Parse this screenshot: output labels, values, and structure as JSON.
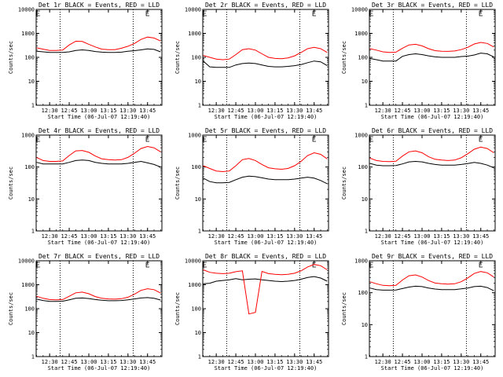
{
  "figure": {
    "time_unit_label": "Start Time (06-Jul-07 12:19:40)",
    "ylabel": "Counts/sec",
    "x_tick_labels": [
      "12:30",
      "12:45",
      "13:00",
      "13:15",
      "13:30",
      "13:45"
    ],
    "y_tick_labels": [
      "1",
      "10",
      "100",
      "1000",
      "10000"
    ]
  },
  "chart_data": [
    {
      "type": "line",
      "title": "Det 1r BLACK = Events, RED = LLD",
      "xlabel": "Start Time (06-Jul-07 12:19:40)",
      "ylabel": "Counts/sec",
      "yscale": "log",
      "ylim": [
        1,
        10000
      ],
      "xlim": [
        "12:19:40",
        "13:56:00"
      ],
      "x": [
        "12:20",
        "12:25",
        "12:30",
        "12:35",
        "12:40",
        "12:45",
        "12:50",
        "12:55",
        "13:00",
        "13:05",
        "13:10",
        "13:15",
        "13:20",
        "13:25",
        "13:30",
        "13:35",
        "13:40",
        "13:45",
        "13:50",
        "13:55"
      ],
      "vlines": [
        "12:38",
        "13:34"
      ],
      "series": [
        {
          "name": "BLACK = Events",
          "color": "#000000",
          "values": [
            180,
            170,
            160,
            160,
            160,
            170,
            195,
            205,
            195,
            175,
            165,
            160,
            160,
            165,
            180,
            190,
            205,
            225,
            215,
            170
          ]
        },
        {
          "name": "RED = LLD",
          "color": "#ff0000",
          "values": [
            250,
            220,
            195,
            195,
            200,
            330,
            470,
            460,
            350,
            270,
            220,
            210,
            210,
            240,
            290,
            380,
            560,
            700,
            640,
            480
          ]
        }
      ]
    },
    {
      "type": "line",
      "title": "Det 2r BLACK = Events, RED = LLD",
      "xlabel": "Start Time (06-Jul-07 12:19:40)",
      "ylabel": "Counts/sec",
      "yscale": "log",
      "ylim": [
        1,
        10000
      ],
      "xlim": [
        "12:19:40",
        "13:56:00"
      ],
      "x": [
        "12:20",
        "12:25",
        "12:30",
        "12:35",
        "12:40",
        "12:45",
        "12:50",
        "12:55",
        "13:00",
        "13:05",
        "13:10",
        "13:15",
        "13:20",
        "13:25",
        "13:30",
        "13:35",
        "13:40",
        "13:45",
        "13:50",
        "13:55"
      ],
      "vlines": [
        "12:38",
        "13:34"
      ],
      "series": [
        {
          "name": "BLACK = Events",
          "color": "#000000",
          "values": [
            70,
            40,
            38,
            38,
            38,
            48,
            55,
            58,
            55,
            48,
            42,
            40,
            40,
            42,
            45,
            50,
            60,
            70,
            65,
            45
          ]
        },
        {
          "name": "RED = LLD",
          "color": "#ff0000",
          "values": [
            120,
            100,
            85,
            80,
            85,
            130,
            210,
            230,
            200,
            140,
            100,
            90,
            88,
            95,
            115,
            160,
            230,
            260,
            230,
            160
          ]
        }
      ]
    },
    {
      "type": "line",
      "title": "Det 3r BLACK = Events, RED = LLD",
      "xlabel": "Start Time (06-Jul-07 12:19:40)",
      "ylabel": "Counts/sec",
      "yscale": "log",
      "ylim": [
        1,
        10000
      ],
      "xlim": [
        "12:19:40",
        "13:56:00"
      ],
      "x": [
        "12:20",
        "12:25",
        "12:30",
        "12:35",
        "12:40",
        "12:45",
        "12:50",
        "12:55",
        "13:00",
        "13:05",
        "13:10",
        "13:15",
        "13:20",
        "13:25",
        "13:30",
        "13:35",
        "13:40",
        "13:45",
        "13:50",
        "13:55"
      ],
      "vlines": [
        "12:38",
        "13:34"
      ],
      "series": [
        {
          "name": "BLACK = Events",
          "color": "#000000",
          "values": [
            90,
            80,
            70,
            70,
            70,
            110,
            130,
            140,
            130,
            115,
            105,
            100,
            100,
            100,
            108,
            112,
            125,
            150,
            140,
            105
          ]
        },
        {
          "name": "RED = LLD",
          "color": "#ff0000",
          "values": [
            230,
            200,
            170,
            160,
            165,
            240,
            330,
            350,
            300,
            230,
            190,
            180,
            178,
            185,
            210,
            260,
            360,
            420,
            380,
            270
          ]
        }
      ]
    },
    {
      "type": "line",
      "title": "Det 4r BLACK = Events, RED = LLD",
      "xlabel": "Start Time (06-Jul-07 12:19:40)",
      "ylabel": "Counts/sec",
      "yscale": "log",
      "ylim": [
        1,
        1000
      ],
      "xlim": [
        "12:19:40",
        "13:56:00"
      ],
      "x": [
        "12:20",
        "12:25",
        "12:30",
        "12:35",
        "12:40",
        "12:45",
        "12:50",
        "12:55",
        "13:00",
        "13:05",
        "13:10",
        "13:15",
        "13:20",
        "13:25",
        "13:30",
        "13:35",
        "13:40",
        "13:45",
        "13:50",
        "13:55"
      ],
      "vlines": [
        "12:38",
        "13:34"
      ],
      "series": [
        {
          "name": "BLACK = Events",
          "color": "#000000",
          "values": [
            140,
            125,
            125,
            125,
            125,
            140,
            160,
            165,
            160,
            140,
            130,
            125,
            125,
            125,
            130,
            140,
            150,
            135,
            120,
            100
          ]
        },
        {
          "name": "RED = LLD",
          "color": "#ff0000",
          "values": [
            200,
            160,
            150,
            150,
            155,
            230,
            320,
            330,
            290,
            220,
            180,
            170,
            165,
            170,
            200,
            270,
            380,
            440,
            400,
            300
          ]
        }
      ]
    },
    {
      "type": "line",
      "title": "Det 5r BLACK = Events, RED = LLD",
      "xlabel": "Start Time (06-Jul-07 12:19:40)",
      "ylabel": "Counts/sec",
      "yscale": "log",
      "ylim": [
        1,
        1000
      ],
      "xlim": [
        "12:19:40",
        "13:56:00"
      ],
      "x": [
        "12:20",
        "12:25",
        "12:30",
        "12:35",
        "12:40",
        "12:45",
        "12:50",
        "12:55",
        "13:00",
        "13:05",
        "13:10",
        "13:15",
        "13:20",
        "13:25",
        "13:30",
        "13:35",
        "13:40",
        "13:45",
        "13:50",
        "13:55"
      ],
      "vlines": [
        "12:38",
        "13:34"
      ],
      "series": [
        {
          "name": "BLACK = Events",
          "color": "#000000",
          "values": [
            45,
            35,
            32,
            32,
            33,
            40,
            48,
            52,
            50,
            46,
            42,
            40,
            40,
            40,
            42,
            45,
            48,
            45,
            38,
            30
          ]
        },
        {
          "name": "RED = LLD",
          "color": "#ff0000",
          "values": [
            110,
            90,
            75,
            72,
            75,
            110,
            170,
            185,
            160,
            120,
            95,
            88,
            85,
            90,
            110,
            150,
            230,
            280,
            250,
            180
          ]
        }
      ]
    },
    {
      "type": "line",
      "title": "Det 6r BLACK = Events, RED = LLD",
      "xlabel": "Start Time (06-Jul-07 12:19:40)",
      "ylabel": "Counts/sec",
      "yscale": "log",
      "ylim": [
        1,
        1000
      ],
      "xlim": [
        "12:19:40",
        "13:56:00"
      ],
      "x": [
        "12:20",
        "12:25",
        "12:30",
        "12:35",
        "12:40",
        "12:45",
        "12:50",
        "12:55",
        "13:00",
        "13:05",
        "13:10",
        "13:15",
        "13:20",
        "13:25",
        "13:30",
        "13:35",
        "13:40",
        "13:45",
        "13:50",
        "13:55"
      ],
      "vlines": [
        "12:38",
        "13:34"
      ],
      "series": [
        {
          "name": "BLACK = Events",
          "color": "#000000",
          "values": [
            130,
            115,
            110,
            110,
            112,
            125,
            145,
            150,
            145,
            130,
            120,
            115,
            115,
            115,
            120,
            128,
            140,
            130,
            115,
            95
          ]
        },
        {
          "name": "RED = LLD",
          "color": "#ff0000",
          "values": [
            190,
            160,
            150,
            148,
            152,
            220,
            300,
            320,
            280,
            210,
            175,
            165,
            160,
            165,
            195,
            260,
            360,
            420,
            380,
            280
          ]
        }
      ]
    },
    {
      "type": "line",
      "title": "Det 7r BLACK = Events, RED = LLD",
      "xlabel": "Start Time (06-Jul-07 12:19:40)",
      "ylabel": "Counts/sec",
      "yscale": "log",
      "ylim": [
        1,
        10000
      ],
      "xlim": [
        "12:19:40",
        "13:56:00"
      ],
      "x": [
        "12:20",
        "12:25",
        "12:30",
        "12:35",
        "12:40",
        "12:45",
        "12:50",
        "12:55",
        "13:00",
        "13:05",
        "13:10",
        "13:15",
        "13:20",
        "13:25",
        "13:30",
        "13:35",
        "13:40",
        "13:45",
        "13:50",
        "13:55"
      ],
      "vlines": [
        "12:38",
        "13:34"
      ],
      "series": [
        {
          "name": "BLACK = Events",
          "color": "#000000",
          "values": [
            250,
            220,
            200,
            200,
            205,
            235,
            270,
            280,
            265,
            240,
            225,
            215,
            215,
            220,
            235,
            255,
            280,
            290,
            270,
            230
          ]
        },
        {
          "name": "RED = LLD",
          "color": "#ff0000",
          "values": [
            330,
            270,
            240,
            235,
            240,
            330,
            460,
            490,
            420,
            320,
            270,
            255,
            250,
            260,
            300,
            400,
            580,
            680,
            620,
            450
          ]
        }
      ]
    },
    {
      "type": "line",
      "title": "Det 8r BLACK = Events, RED = LLD",
      "xlabel": "Start Time (06-Jul-07 12:19:40)",
      "ylabel": "Counts/sec",
      "yscale": "log",
      "ylim": [
        1,
        10000
      ],
      "xlim": [
        "12:19:40",
        "13:56:00"
      ],
      "x": [
        "12:20",
        "12:25",
        "12:30",
        "12:35",
        "12:40",
        "12:45",
        "12:50",
        "12:55",
        "13:00",
        "13:05",
        "13:10",
        "13:15",
        "13:20",
        "13:25",
        "13:30",
        "13:35",
        "13:40",
        "13:45",
        "13:50",
        "13:55"
      ],
      "vlines": [
        "12:38",
        "13:34"
      ],
      "series": [
        {
          "name": "BLACK = Events",
          "color": "#000000",
          "values": [
            1100,
            1150,
            1400,
            1500,
            1600,
            1800,
            1600,
            1700,
            1750,
            1600,
            1500,
            1400,
            1350,
            1400,
            1500,
            1700,
            2000,
            2200,
            1900,
            1400
          ]
        },
        {
          "name": "RED = LLD",
          "color": "#ff0000",
          "values": [
            4200,
            3300,
            3000,
            2900,
            3000,
            3500,
            3800,
            60,
            70,
            3600,
            2900,
            2700,
            2600,
            2700,
            3000,
            3800,
            5500,
            7000,
            6200,
            4200
          ]
        }
      ]
    },
    {
      "type": "line",
      "title": "Det 9r BLACK = Events, RED = LLD",
      "xlabel": "Start Time (06-Jul-07 12:19:40)",
      "ylabel": "Counts/sec",
      "yscale": "log",
      "ylim": [
        1,
        1000
      ],
      "xlim": [
        "12:19:40",
        "13:56:00"
      ],
      "x": [
        "12:20",
        "12:25",
        "12:30",
        "12:35",
        "12:40",
        "12:45",
        "12:50",
        "12:55",
        "13:00",
        "13:05",
        "13:10",
        "13:15",
        "13:20",
        "13:25",
        "13:30",
        "13:35",
        "13:40",
        "13:45",
        "13:50",
        "13:55"
      ],
      "vlines": [
        "12:38",
        "13:34"
      ],
      "series": [
        {
          "name": "BLACK = Events",
          "color": "#000000",
          "values": [
            140,
            125,
            120,
            120,
            122,
            135,
            150,
            160,
            155,
            140,
            130,
            125,
            125,
            125,
            132,
            140,
            155,
            160,
            145,
            115
          ]
        },
        {
          "name": "RED = LLD",
          "color": "#ff0000",
          "values": [
            220,
            190,
            170,
            165,
            170,
            250,
            340,
            360,
            310,
            240,
            200,
            190,
            185,
            190,
            220,
            290,
            400,
            460,
            420,
            310
          ]
        }
      ]
    }
  ]
}
